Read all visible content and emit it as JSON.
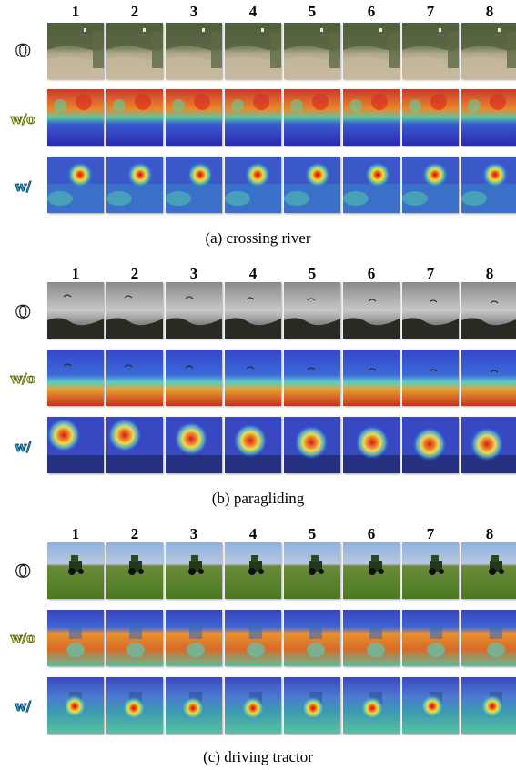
{
  "column_numbers": [
    "1",
    "2",
    "3",
    "4",
    "5",
    "6",
    "7",
    "8"
  ],
  "row_labels": {
    "original": "O",
    "without": "w/o",
    "with": "w/"
  },
  "panels": [
    {
      "id": "a",
      "caption": "(a) crossing river"
    },
    {
      "id": "b",
      "caption": "(b) paragliding"
    },
    {
      "id": "c",
      "caption": "(c) driving tractor"
    }
  ]
}
